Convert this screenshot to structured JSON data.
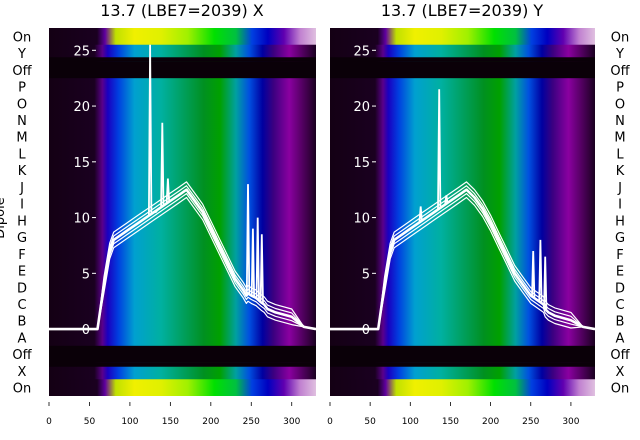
{
  "chart_data": [
    {
      "type": "heatmap",
      "title": "13.7 (LBE7=2039) X",
      "ylabel": "Dipole",
      "y_categories_top_to_bottom": [
        "On",
        "Y",
        "Off",
        "P",
        "O",
        "N",
        "M",
        "L",
        "K",
        "J",
        "I",
        "H",
        "G",
        "F",
        "E",
        "D",
        "C",
        "B",
        "A",
        "Off",
        "X",
        "On"
      ],
      "x_ticks": [
        0,
        50,
        100,
        150,
        200,
        250,
        300
      ],
      "xlim": [
        0,
        330
      ],
      "overlay_y_ticks": [
        0,
        5,
        10,
        15,
        20,
        25
      ],
      "overlay_ylim": [
        -6,
        27
      ],
      "spectrum_line": {
        "x": [
          0,
          60,
          68,
          75,
          80,
          90,
          100,
          110,
          120,
          130,
          140,
          150,
          160,
          170,
          180,
          190,
          200,
          210,
          220,
          230,
          240,
          244,
          246,
          250,
          256,
          262,
          266,
          270,
          280,
          300,
          315,
          330
        ],
        "y": [
          0,
          0,
          4,
          7,
          8,
          8.5,
          9,
          9.5,
          10,
          10.5,
          11,
          11.5,
          12,
          12.5,
          11.5,
          10.5,
          9,
          7.5,
          6,
          4.5,
          3.5,
          3,
          3.2,
          3,
          2.8,
          2.4,
          2.2,
          1.8,
          1.5,
          1.1,
          0.2,
          0
        ],
        "spikes": [
          {
            "x": 125,
            "y": 25.5
          },
          {
            "x": 132,
            "y": 10.5
          },
          {
            "x": 140,
            "y": 18.5
          },
          {
            "x": 147,
            "y": 13.5
          },
          {
            "x": 246,
            "y": 13.0
          },
          {
            "x": 252,
            "y": 9.0
          },
          {
            "x": 258,
            "y": 10.0
          },
          {
            "x": 263,
            "y": 8.5
          }
        ]
      }
    },
    {
      "type": "heatmap",
      "title": "13.7 (LBE7=2039) Y",
      "y_categories_top_to_bottom": [
        "On",
        "Y",
        "Off",
        "P",
        "O",
        "N",
        "M",
        "L",
        "K",
        "J",
        "I",
        "H",
        "G",
        "F",
        "E",
        "D",
        "C",
        "B",
        "A",
        "Off",
        "X",
        "On"
      ],
      "x_ticks": [
        0,
        50,
        100,
        150,
        200,
        250,
        300
      ],
      "xlim": [
        0,
        330
      ],
      "overlay_y_ticks": [
        0,
        5,
        10,
        15,
        20,
        25
      ],
      "overlay_ylim": [
        -6,
        27
      ],
      "spectrum_line": {
        "x": [
          0,
          60,
          68,
          75,
          80,
          90,
          100,
          110,
          120,
          130,
          140,
          150,
          160,
          170,
          180,
          190,
          200,
          210,
          220,
          230,
          240,
          250,
          260,
          266,
          268,
          272,
          280,
          300,
          315,
          330
        ],
        "y": [
          0,
          0,
          4,
          7,
          8,
          8.5,
          9,
          9.5,
          10,
          10.5,
          11,
          11.5,
          12,
          12.5,
          11.8,
          10.8,
          9.5,
          8,
          6.5,
          5,
          4,
          3,
          2.5,
          2.2,
          1.8,
          1.5,
          1.2,
          0.8,
          0.2,
          0
        ],
        "spikes": [
          {
            "x": 113,
            "y": 11.0
          },
          {
            "x": 136,
            "y": 21.5
          },
          {
            "x": 145,
            "y": 12.0
          },
          {
            "x": 253,
            "y": 7.0
          },
          {
            "x": 262,
            "y": 8.0
          },
          {
            "x": 268,
            "y": 6.5
          }
        ]
      }
    }
  ],
  "colors": {
    "background": "#ffffff",
    "overlay_line": "#ffffff",
    "dark_band": "#0a0008"
  }
}
